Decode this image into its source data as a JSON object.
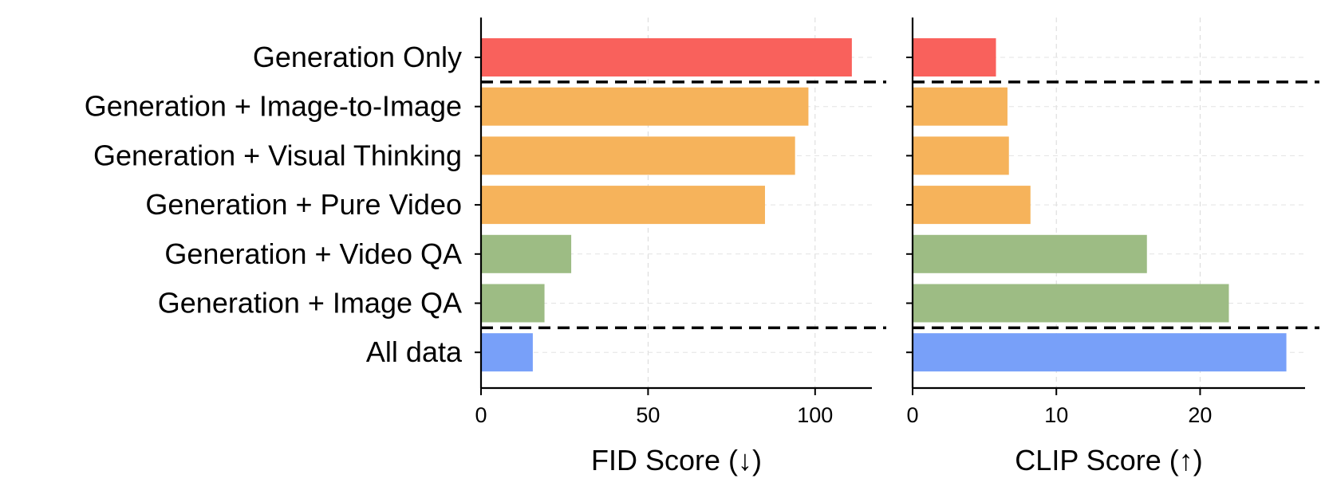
{
  "chart_data": [
    {
      "type": "bar",
      "orientation": "horizontal",
      "categories": [
        "Generation Only",
        "Generation + Image-to-Image",
        "Generation + Visual Thinking",
        "Generation + Pure Video",
        "Generation + Video QA",
        "Generation + Image QA",
        "All data"
      ],
      "values": [
        111,
        98,
        94,
        85,
        27,
        19,
        15.5
      ],
      "colors": [
        "#f9615c",
        "#f6b35b",
        "#f6b35b",
        "#f6b35b",
        "#9dbc84",
        "#9dbc84",
        "#78a0f9"
      ],
      "xlabel": "FID Score (↓)",
      "xlim": [
        0,
        117
      ],
      "xticks": [
        0,
        50,
        100
      ],
      "xtick_labels": [
        "0",
        "50",
        "100"
      ],
      "grid": true,
      "group_separators_after": [
        0,
        5
      ]
    },
    {
      "type": "bar",
      "orientation": "horizontal",
      "categories": [
        "Generation Only",
        "Generation + Image-to-Image",
        "Generation + Visual Thinking",
        "Generation + Pure Video",
        "Generation + Video QA",
        "Generation + Image QA",
        "All data"
      ],
      "values": [
        5.8,
        6.6,
        6.7,
        8.2,
        16.3,
        22.0,
        26.0
      ],
      "colors": [
        "#f9615c",
        "#f6b35b",
        "#f6b35b",
        "#f6b35b",
        "#9dbc84",
        "#9dbc84",
        "#78a0f9"
      ],
      "xlabel": "CLIP Score (↑)",
      "xlim": [
        0,
        27.3
      ],
      "xticks": [
        0,
        10,
        20
      ],
      "xtick_labels": [
        "0",
        "10",
        "20"
      ],
      "grid": true,
      "group_separators_after": [
        0,
        5
      ]
    }
  ]
}
